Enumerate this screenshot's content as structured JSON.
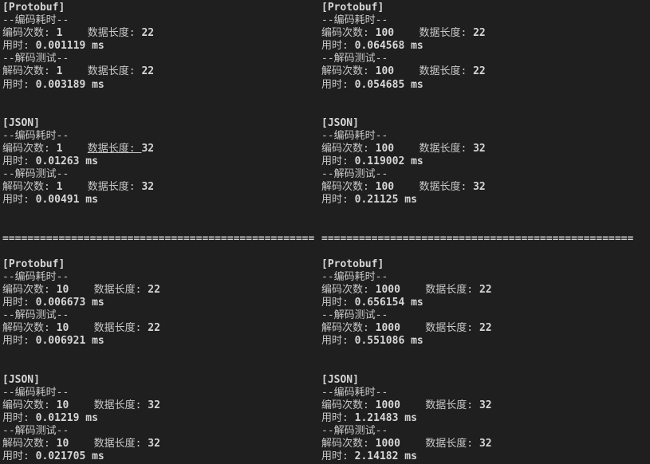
{
  "window": {
    "type": "terminal-console-output",
    "background_color": "#1f1f1f",
    "text_color": "#c8c8c8",
    "bold_text_color": "#d6d6d6"
  },
  "labels": {
    "protobuf_header": "[Protobuf]",
    "json_header": "[JSON]",
    "encode_section": "--编码耗时--",
    "decode_section": "--解码测试--",
    "encode_count_label": "编码次数: ",
    "decode_count_label": "解码次数: ",
    "data_len_label": "数据长度: ",
    "time_label": "用时: ",
    "ms_unit": " ms",
    "gap": "    ",
    "separator": "=================================================="
  },
  "runs": [
    {
      "position": "top-left",
      "iterations": "1",
      "protobuf": {
        "encode_count": "1",
        "encode_len": "22",
        "encode_time": "0.001119",
        "decode_count": "1",
        "decode_len": "22",
        "decode_time": "0.003189"
      },
      "json": {
        "encode_count": "1",
        "encode_len": "32",
        "encode_time": "0.01263",
        "decode_count": "1",
        "decode_len": "32",
        "decode_time": "0.00491"
      }
    },
    {
      "position": "top-right",
      "iterations": "100",
      "protobuf": {
        "encode_count": "100",
        "encode_len": "22",
        "encode_time": "0.064568",
        "decode_count": "100",
        "decode_len": "22",
        "decode_time": "0.054685"
      },
      "json": {
        "encode_count": "100",
        "encode_len": "32",
        "encode_time": "0.119002",
        "decode_count": "100",
        "decode_len": "32",
        "decode_time": "0.21125"
      }
    },
    {
      "position": "bottom-left",
      "iterations": "10",
      "protobuf": {
        "encode_count": "10",
        "encode_len": "22",
        "encode_time": "0.006673",
        "decode_count": "10",
        "decode_len": "22",
        "decode_time": "0.006921"
      },
      "json": {
        "encode_count": "10",
        "encode_len": "32",
        "encode_time": "0.01219",
        "decode_count": "10",
        "decode_len": "32",
        "decode_time": "0.021705"
      }
    },
    {
      "position": "bottom-right",
      "iterations": "1000",
      "protobuf": {
        "encode_count": "1000",
        "encode_len": "22",
        "encode_time": "0.656154",
        "decode_count": "1000",
        "decode_len": "22",
        "decode_time": "0.551086"
      },
      "json": {
        "encode_count": "1000",
        "encode_len": "32",
        "encode_time": "1.21483",
        "decode_count": "1000",
        "decode_len": "32",
        "decode_time": "2.14182"
      }
    }
  ]
}
